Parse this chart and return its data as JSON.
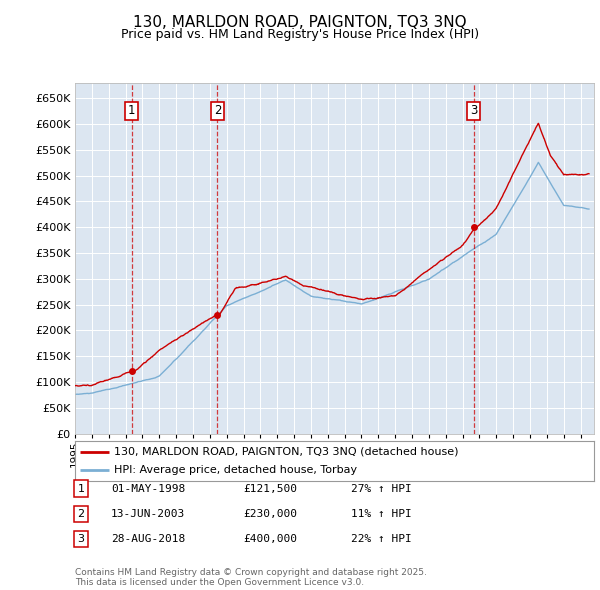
{
  "title": "130, MARLDON ROAD, PAIGNTON, TQ3 3NQ",
  "subtitle": "Price paid vs. HM Land Registry's House Price Index (HPI)",
  "ylim": [
    0,
    680000
  ],
  "background_color": "#ffffff",
  "plot_bg_color": "#dce6f1",
  "grid_color": "#ffffff",
  "legend_label_red": "130, MARLDON ROAD, PAIGNTON, TQ3 3NQ (detached house)",
  "legend_label_blue": "HPI: Average price, detached house, Torbay",
  "sale_events": [
    {
      "label": "1",
      "date": 1998.37,
      "price": 121500,
      "x_label": "01-MAY-1998",
      "price_label": "£121,500",
      "hpi_label": "27% ↑ HPI"
    },
    {
      "label": "2",
      "date": 2003.45,
      "price": 230000,
      "x_label": "13-JUN-2003",
      "price_label": "£230,000",
      "hpi_label": "11% ↑ HPI"
    },
    {
      "label": "3",
      "date": 2018.66,
      "price": 400000,
      "x_label": "28-AUG-2018",
      "price_label": "£400,000",
      "hpi_label": "22% ↑ HPI"
    }
  ],
  "footer": "Contains HM Land Registry data © Crown copyright and database right 2025.\nThis data is licensed under the Open Government Licence v3.0.",
  "red_line_color": "#cc0000",
  "blue_line_color": "#7bafd4",
  "sale_marker_color": "#cc0000",
  "vline_color": "#cc0000",
  "box_edge_color": "#cc0000"
}
